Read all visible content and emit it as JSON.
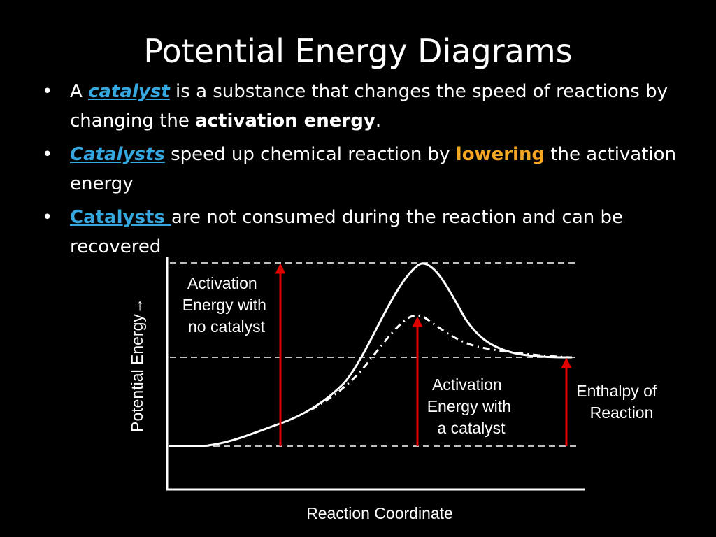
{
  "slide": {
    "title": "Potential Energy Diagrams"
  },
  "bullets": [
    {
      "parts": [
        "A ",
        "catalyst",
        " is a substance that changes the speed of reactions by changing the ",
        "activation energy",
        "."
      ]
    },
    {
      "parts": [
        "Catalysts",
        " speed up chemical reaction by  ",
        "lowering",
        " the activation energy"
      ]
    },
    {
      "parts": [
        "Catalysts ",
        "are not consumed during the reaction and can be recovered"
      ]
    }
  ],
  "bullet_symbol": "•",
  "diagram": {
    "y_axis_label": "Potential Energy→",
    "x_axis_label": "Reaction Coordinate",
    "labels": {
      "activation_no_catalyst": [
        "Activation",
        "Energy with",
        "no catalyst"
      ],
      "activation_with_catalyst": [
        "Activation",
        "Energy with",
        "a catalyst"
      ],
      "enthalpy": [
        "Enthalpy of",
        "Reaction"
      ]
    }
  },
  "colors": {
    "background": "#000000",
    "text": "#ffffff",
    "catalyst_blue": "#35a8e0",
    "lowering_orange": "#f5a623",
    "arrow_red": "#e00000"
  }
}
